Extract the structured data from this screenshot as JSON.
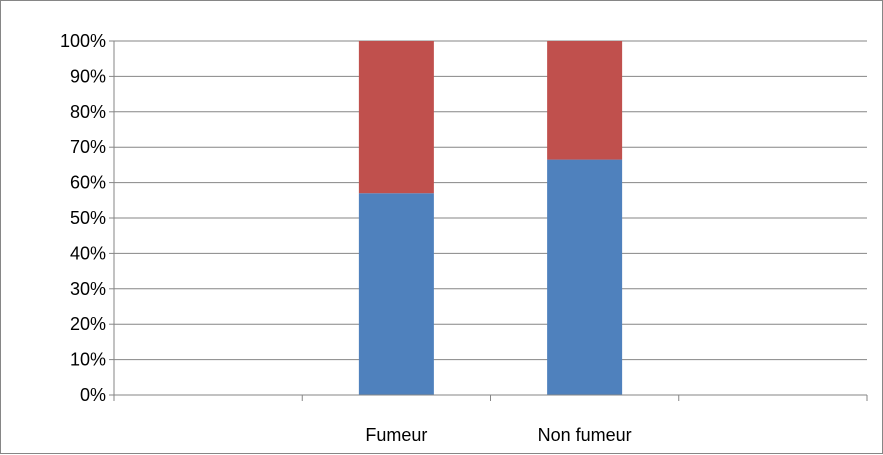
{
  "chart_data": {
    "type": "bar",
    "stacked": "percent",
    "categories": [
      "",
      "Fumeur",
      "Non fumeur",
      ""
    ],
    "series": [
      {
        "values": [
          null,
          57,
          66.5,
          null
        ],
        "color": "#4F81BD"
      },
      {
        "values": [
          null,
          43,
          33.5,
          null
        ],
        "color": "#C0504D"
      }
    ],
    "yticks": [
      "0%",
      "10%",
      "20%",
      "30%",
      "40%",
      "50%",
      "60%",
      "70%",
      "80%",
      "90%",
      "100%"
    ],
    "ylim": [
      0,
      100
    ],
    "grid": true,
    "legend": "none",
    "title": "",
    "xlabel": "",
    "ylabel": ""
  }
}
